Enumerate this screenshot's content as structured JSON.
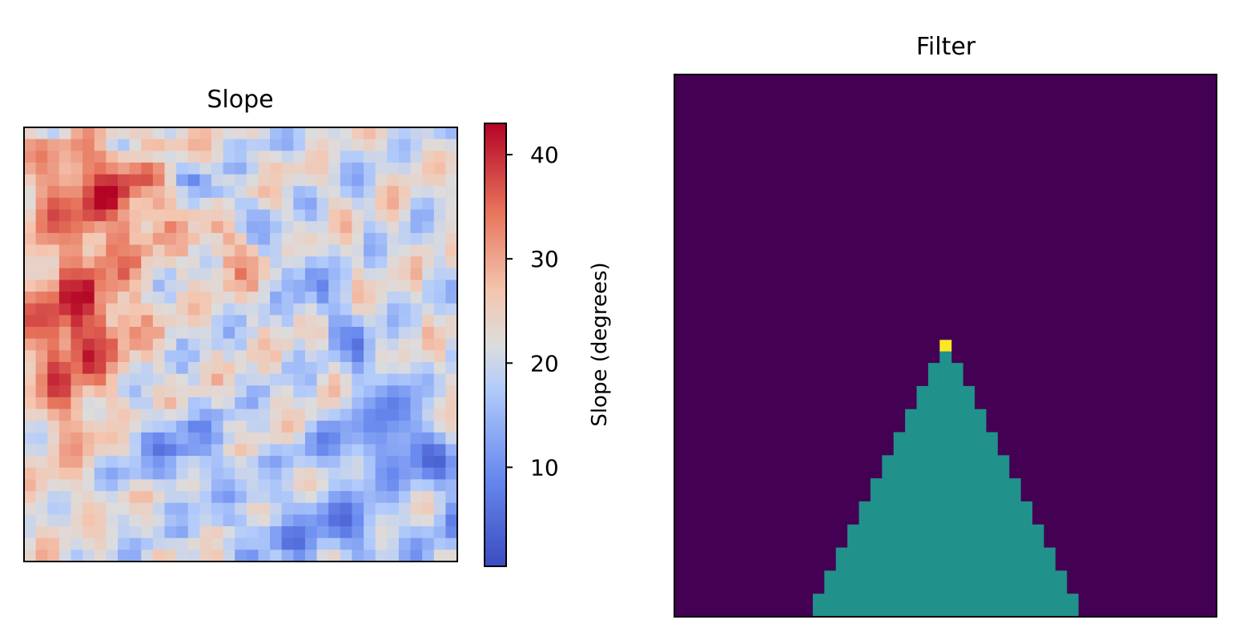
{
  "chart_data": [
    {
      "type": "heatmap",
      "title": "Slope",
      "xlabel": "",
      "ylabel": "",
      "grid": false,
      "colormap": "coolwarm",
      "grid_size": [
        37,
        37
      ],
      "colorbar": {
        "label": "Slope (degrees)",
        "range": [
          0.5,
          43
        ],
        "ticks": [
          10,
          20,
          30,
          40
        ],
        "tick_labels": [
          "10",
          "20",
          "30",
          "40"
        ]
      },
      "regions": [
        {
          "desc": "high slope upper-left",
          "row": 5,
          "col": 6,
          "value": 36
        },
        {
          "desc": "peak value left middle",
          "row": 17,
          "col": 3,
          "value": 42
        }
      ]
    },
    {
      "type": "heatmap",
      "title": "Filter",
      "xlabel": "",
      "ylabel": "",
      "grid": false,
      "colormap": "viridis",
      "grid_size": [
        47,
        47
      ],
      "values_legend": {
        "background": 0,
        "triangle": 1,
        "apex": 2
      },
      "triangle_steps": [
        {
          "row": 23,
          "col_start": 23,
          "col_end": 23,
          "value": 2
        },
        {
          "row": 24,
          "col_start": 23,
          "col_end": 23,
          "value": 1
        },
        {
          "row": 25,
          "col_start": 22,
          "col_end": 24,
          "value": 1
        },
        {
          "row": 27,
          "col_start": 21,
          "col_end": 25,
          "value": 1
        },
        {
          "row": 29,
          "col_start": 20,
          "col_end": 26,
          "value": 1
        },
        {
          "row": 31,
          "col_start": 19,
          "col_end": 27,
          "value": 1
        },
        {
          "row": 33,
          "col_start": 18,
          "col_end": 28,
          "value": 1
        },
        {
          "row": 35,
          "col_start": 17,
          "col_end": 29,
          "value": 1
        },
        {
          "row": 37,
          "col_start": 16,
          "col_end": 30,
          "value": 1
        },
        {
          "row": 39,
          "col_start": 15,
          "col_end": 31,
          "value": 1
        },
        {
          "row": 41,
          "col_start": 14,
          "col_end": 32,
          "value": 1
        },
        {
          "row": 43,
          "col_start": 13,
          "col_end": 33,
          "value": 1
        },
        {
          "row": 45,
          "col_start": 12,
          "col_end": 34,
          "value": 1
        }
      ]
    }
  ]
}
